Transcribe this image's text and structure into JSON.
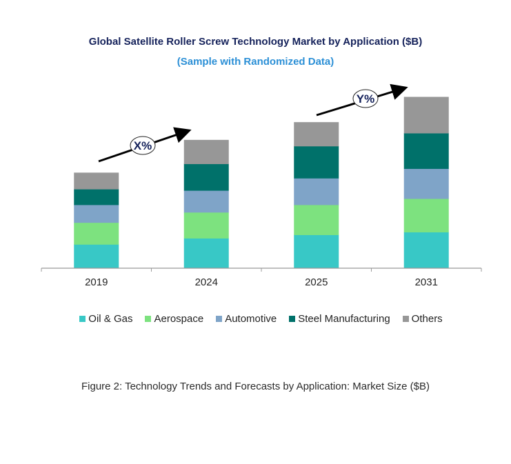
{
  "chart_data": {
    "type": "bar",
    "stacked": true,
    "title": "Global Satellite Roller Screw Technology Market by Application ($B)",
    "subtitle": "(Sample with Randomized Data)",
    "xlabel": "",
    "ylabel": "",
    "y_axis_shown": false,
    "grid": false,
    "legend_position": "bottom",
    "categories": [
      "2019",
      "2024",
      "2025",
      "2031"
    ],
    "series": [
      {
        "name": "Oil & Gas",
        "color": "#38c8c6",
        "values": [
          3.5,
          4.4,
          4.9,
          5.3
        ]
      },
      {
        "name": "Aerospace",
        "color": "#7de27f",
        "values": [
          3.2,
          3.8,
          4.4,
          4.9
        ]
      },
      {
        "name": "Automotive",
        "color": "#7fa4c8",
        "values": [
          2.6,
          3.2,
          3.9,
          4.4
        ]
      },
      {
        "name": "Steel Manufacturing",
        "color": "#00716a",
        "values": [
          2.3,
          3.9,
          4.7,
          5.2
        ]
      },
      {
        "name": "Others",
        "color": "#979797",
        "values": [
          2.4,
          3.5,
          3.5,
          5.3
        ]
      }
    ],
    "annotations": [
      {
        "label": "X%",
        "from": "2019",
        "to": "2024"
      },
      {
        "label": "Y%",
        "from": "2025",
        "to": "2031"
      }
    ],
    "caption": "Figure 2: Technology  Trends  and Forecasts by Application: Market Size ($B)"
  }
}
